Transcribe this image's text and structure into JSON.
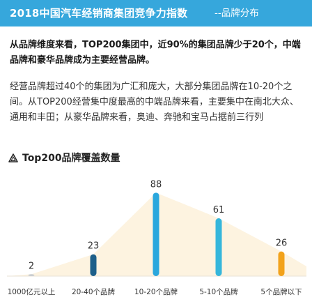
{
  "header": {
    "title": "2018中国汽车经销商集团竞争力指数",
    "subtitle": "--品牌分布"
  },
  "summary": "从品牌维度来看，TOP200集团中，近90%的集团品牌少于20个，中端品牌和豪华品牌成为主要经营品牌。",
  "detail": "经营品牌超过40个的集团为广汇和庞大，大部分集团品牌在10-20个之间。从TOP200经营集中度最高的中端品牌来看，主要集中在南北大众、通用和丰田；从豪华品牌来看，奥迪、奔驰和宝马占据前三行列",
  "colors": {
    "header_bg": "#36a7dc",
    "area_fill": "#fdf3e0"
  },
  "chart_data": {
    "type": "bar",
    "title": "Top200品牌覆盖数量",
    "categories": [
      "1000亿元以上",
      "20-40个品牌",
      "10-20个品牌",
      "5-10个品牌",
      "5个品牌以下"
    ],
    "values": [
      2,
      23,
      88,
      61,
      26
    ],
    "bar_colors": [
      "#c8ccd0",
      "#1d5f8a",
      "#2aa7dd",
      "#35b6db",
      "#f2a21b"
    ],
    "ylim": [
      0,
      100
    ],
    "grid": false,
    "legend": "none"
  }
}
